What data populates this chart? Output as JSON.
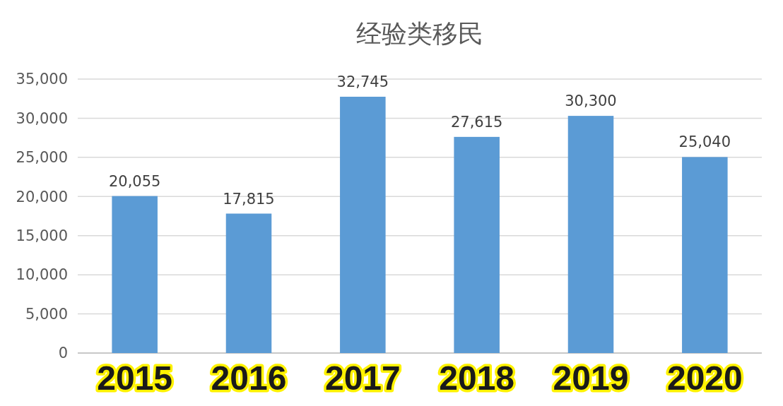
{
  "chart_data": {
    "type": "bar",
    "title": "经验类移民",
    "categories": [
      "2015",
      "2016",
      "2017",
      "2018",
      "2019",
      "2020"
    ],
    "values": [
      20055,
      17815,
      32745,
      27615,
      30300,
      25040
    ],
    "color": "#5b9bd5",
    "ylim": [
      0,
      35000
    ],
    "yticks": [
      {
        "value": 0,
        "label": "0"
      },
      {
        "value": 5000,
        "label": "5,000"
      },
      {
        "value": 10000,
        "label": "10,000"
      },
      {
        "value": 15000,
        "label": "15,000"
      },
      {
        "value": 20000,
        "label": "20,000"
      },
      {
        "value": 25000,
        "label": "25,000"
      },
      {
        "value": 30000,
        "label": "30,000"
      },
      {
        "value": 35000,
        "label": "35,000"
      }
    ],
    "value_labels": [
      "20,055",
      "17,815",
      "32,745",
      "27,615",
      "30,300",
      "25,040"
    ],
    "grid": "y"
  }
}
